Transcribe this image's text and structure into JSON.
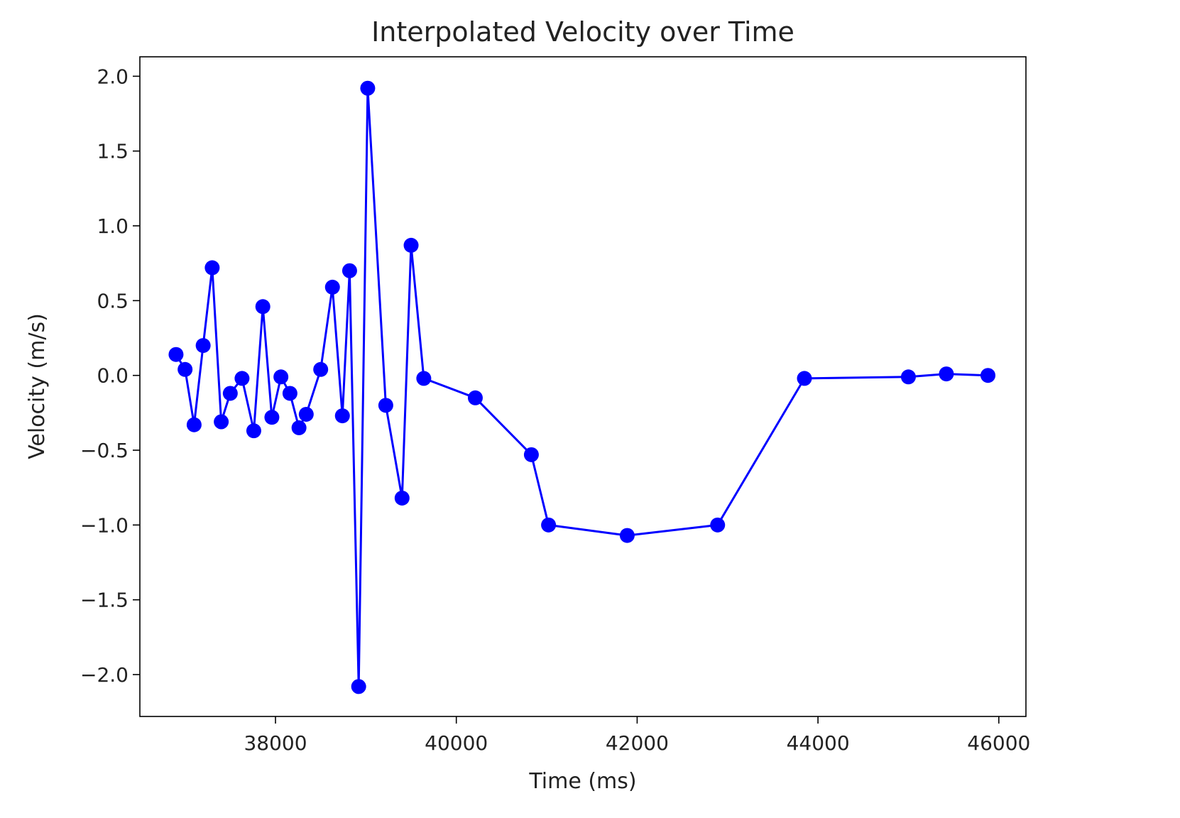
{
  "chart_data": {
    "type": "line",
    "title": "Interpolated Velocity over Time",
    "xlabel": "Time (ms)",
    "ylabel": "Velocity (m/s)",
    "xlim": [
      36500,
      46300
    ],
    "ylim": [
      -2.28,
      2.13
    ],
    "xticks": [
      38000,
      40000,
      42000,
      44000,
      46000
    ],
    "xtick_labels": [
      "38000",
      "40000",
      "42000",
      "44000",
      "46000"
    ],
    "yticks": [
      2.0,
      1.5,
      1.0,
      0.5,
      0.0,
      -0.5,
      -1.0,
      -1.5,
      -2.0
    ],
    "ytick_labels": [
      "2.0",
      "1.5",
      "1.0",
      "0.5",
      "0.0",
      "−0.5",
      "−1.0",
      "−1.5",
      "−2.0"
    ],
    "grid": false,
    "legend": "none",
    "series": [
      {
        "color": "#0000ff",
        "marker": "circle",
        "x": [
          36900,
          37000,
          37100,
          37200,
          37300,
          37400,
          37500,
          37630,
          37760,
          37860,
          37960,
          38060,
          38160,
          38260,
          38340,
          38500,
          38630,
          38740,
          38820,
          38920,
          39020,
          39220,
          39400,
          39500,
          39640,
          40210,
          40830,
          41020,
          41890,
          42890,
          43850,
          45000,
          45420,
          45880
        ],
        "y": [
          0.14,
          0.04,
          -0.33,
          0.2,
          0.72,
          -0.31,
          -0.12,
          -0.02,
          -0.37,
          0.46,
          -0.28,
          -0.01,
          -0.12,
          -0.35,
          -0.26,
          0.04,
          0.59,
          -0.27,
          0.7,
          -2.08,
          1.92,
          -0.2,
          -0.82,
          0.87,
          -0.02,
          -0.15,
          -0.53,
          -1.0,
          -1.07,
          -1.0,
          -0.02,
          -0.01,
          0.01,
          0.0
        ]
      }
    ]
  }
}
